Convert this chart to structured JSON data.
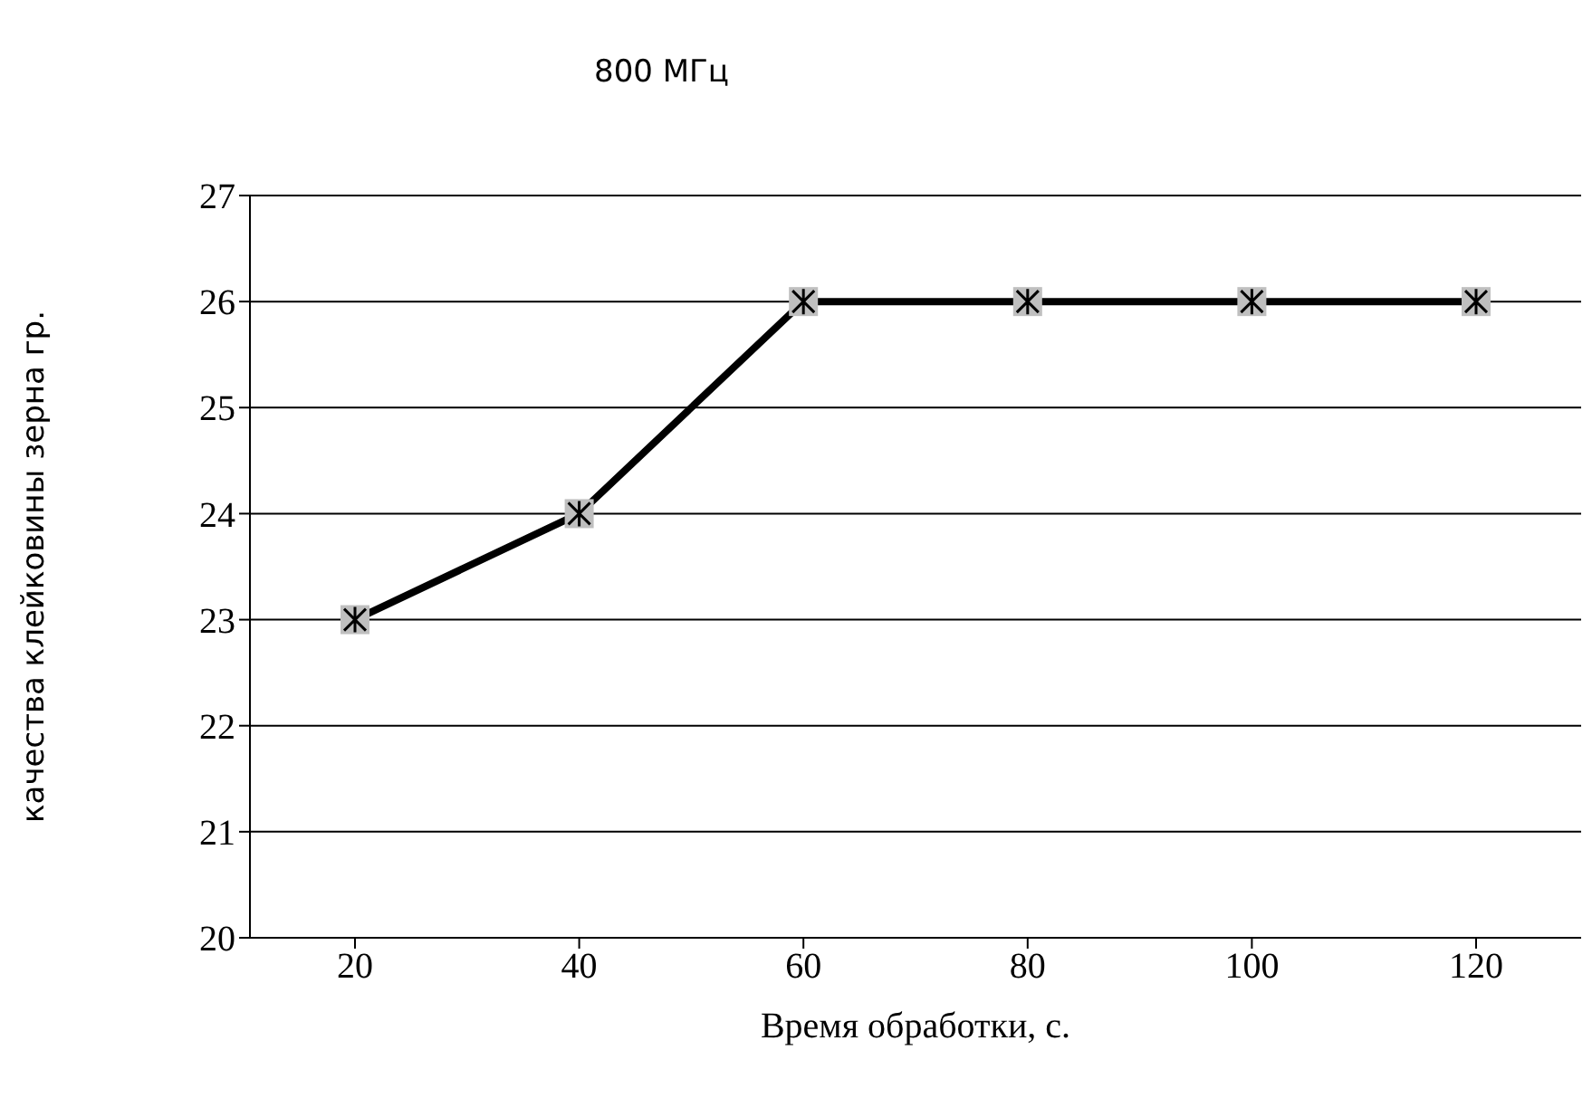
{
  "chart_data": {
    "type": "line",
    "title": "800 МГц",
    "xlabel": "Время обработки, с.",
    "ylabel": "качества клейковины зерна гр.",
    "categories": [
      "20",
      "40",
      "60",
      "80",
      "100",
      "120"
    ],
    "series": [
      {
        "color": "#000000",
        "values": [
          23,
          24,
          26,
          26,
          26,
          26
        ]
      }
    ],
    "ylim": [
      20,
      27
    ],
    "yticks": [
      20,
      21,
      22,
      23,
      24,
      25,
      26,
      27
    ],
    "grid": "y",
    "legend": false,
    "marker": "cross",
    "line_style": "solid"
  }
}
